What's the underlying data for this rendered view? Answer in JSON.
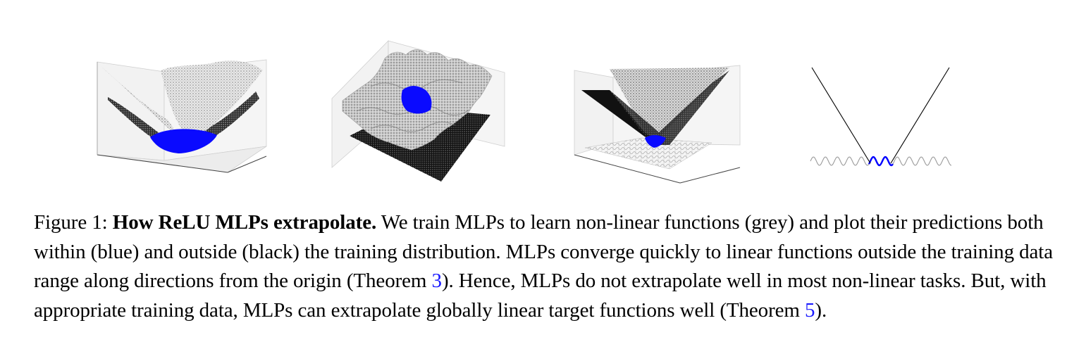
{
  "figure": {
    "caption": {
      "label": "Figure 1:",
      "title": "How ReLU MLPs extrapolate.",
      "text_1": "We train MLPs to learn non-linear functions (grey) and plot their predictions both within (blue) and outside (black) the training distribution. MLPs converge quickly to linear functions outside the training data range along directions from the origin (Theorem ",
      "ref_1": "3",
      "text_2": "). Hence, MLPs do not extrapolate well in most non-linear tasks. But, with appropriate training data, MLPs can extrapolate globally linear target functions well (Theorem ",
      "ref_2": "5",
      "text_3": ")."
    },
    "colors": {
      "target_function": "#9a9a9a",
      "in_distribution": "#0000ff",
      "out_of_distribution": "#000000",
      "panel_box": "#555555",
      "pane_fill": "#f2f2f2"
    },
    "panels": [
      {
        "id": "quadratic-3d",
        "icon": "quadratic-surface-plot"
      },
      {
        "id": "cosine-3d",
        "icon": "wavy-surface-plot"
      },
      {
        "id": "sqrt-3d",
        "icon": "cone-surface-plot"
      },
      {
        "id": "abs-sin-1d",
        "icon": "abs-function-plot"
      }
    ]
  }
}
